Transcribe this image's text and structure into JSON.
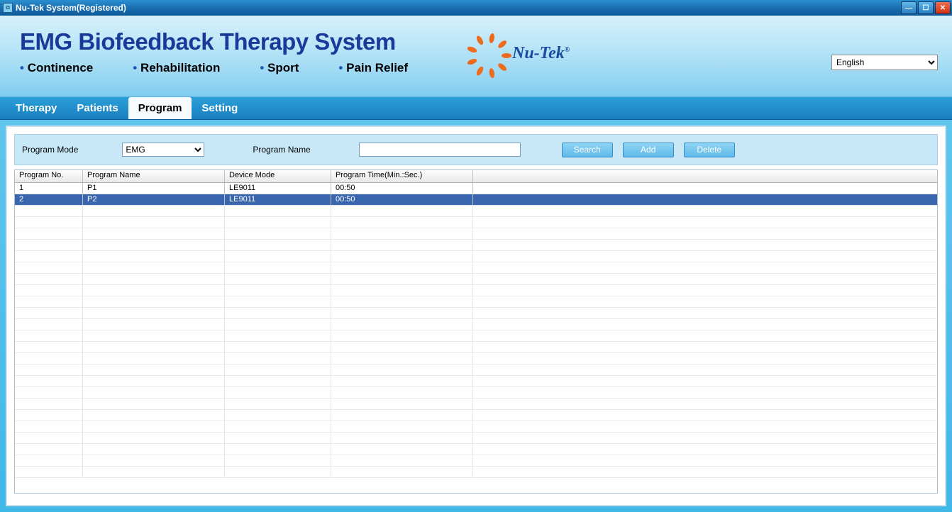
{
  "titlebar": {
    "title": "Nu-Tek System(Registered)"
  },
  "header": {
    "main_title": "EMG Biofeedback Therapy System",
    "subtitles": [
      "Continence",
      "Rehabilitation",
      "Sport",
      "Pain Relief"
    ],
    "logo_text": "Nu-Tek",
    "language": "English"
  },
  "menu": {
    "items": [
      "Therapy",
      "Patients",
      "Program",
      "Setting"
    ],
    "active_index": 2
  },
  "filter": {
    "mode_label": "Program Mode",
    "mode_value": "EMG",
    "name_label": "Program Name",
    "name_value": "",
    "search_btn": "Search",
    "add_btn": "Add",
    "delete_btn": "Delete"
  },
  "grid": {
    "columns": [
      "Program No.",
      "Program Name",
      "Device Mode",
      "Program Time(Min.:Sec.)"
    ],
    "rows": [
      {
        "no": "1",
        "name": "P1",
        "device": "LE9011",
        "time": "00:50",
        "selected": false
      },
      {
        "no": "2",
        "name": "P2",
        "device": "LE9011",
        "time": "00:50",
        "selected": true
      }
    ],
    "empty_rows": 24,
    "selected_bg": "#3a66b0"
  }
}
